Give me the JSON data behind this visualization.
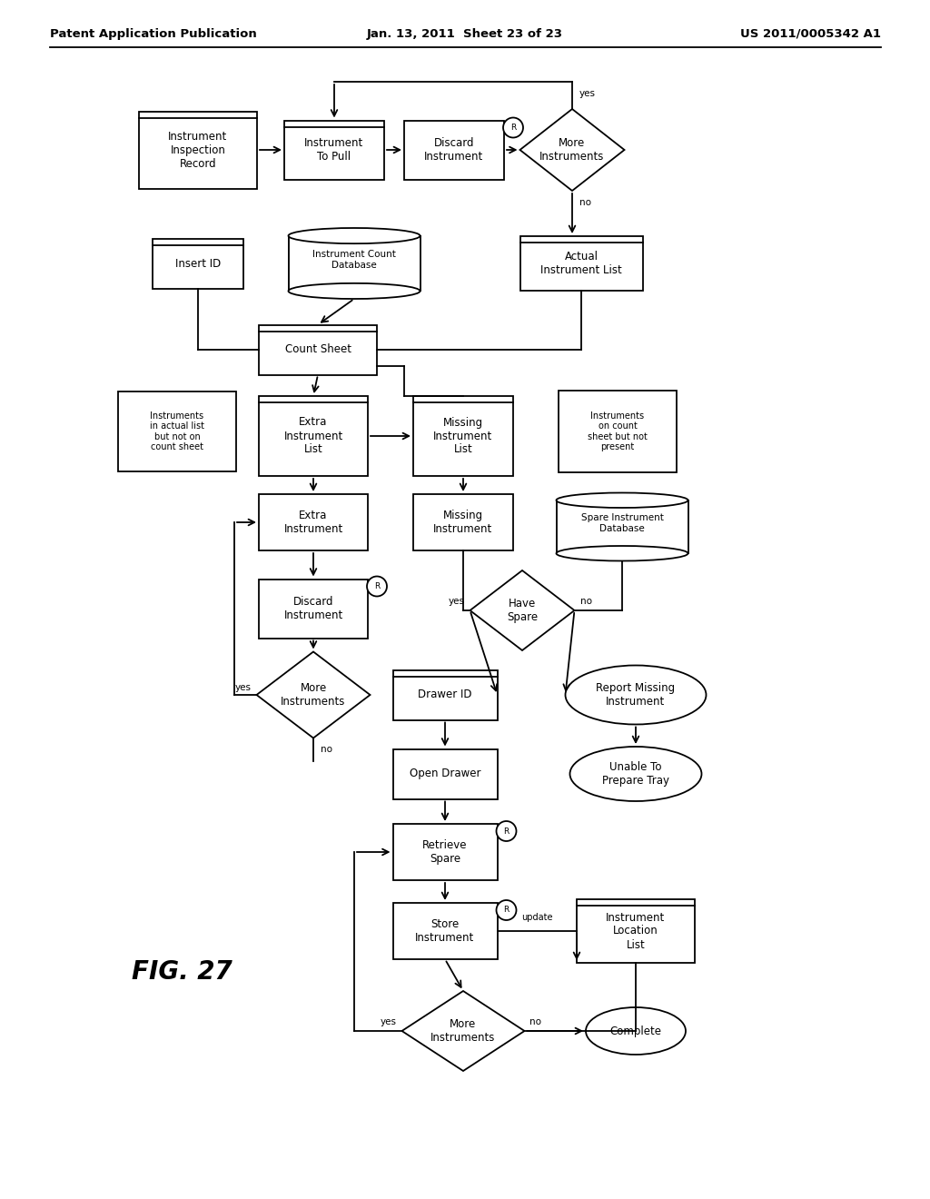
{
  "title_left": "Patent Application Publication",
  "title_mid": "Jan. 13, 2011  Sheet 23 of 23",
  "title_right": "US 2011/0005342 A1",
  "fig_label": "FIG. 27",
  "background_color": "#ffffff",
  "line_color": "#000000",
  "text_color": "#000000",
  "font_size": 8.5,
  "header_font_size": 9.5
}
